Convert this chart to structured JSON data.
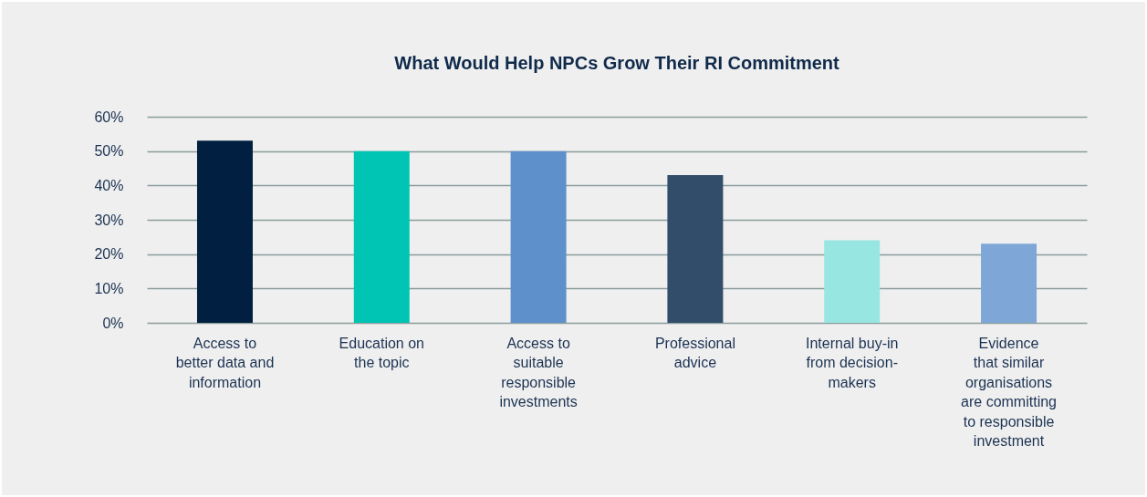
{
  "chart_data": {
    "type": "bar",
    "title": "What Would Help NPCs Grow Their RI Commitment",
    "categories": [
      "Access to\nbetter data and\ninformation",
      "Education on\nthe topic",
      "Access to\nsuitable\nresponsible\ninvestments",
      "Professional\nadvice",
      "Internal buy-in\nfrom decision-\nmakers",
      "Evidence\nthat similar\norganisations\nare committing\nto responsible\ninvestment"
    ],
    "values": [
      0.53,
      0.5,
      0.5,
      0.43,
      0.24,
      0.23
    ],
    "colors": [
      "#011f41",
      "#00c5b5",
      "#5e91cb",
      "#324d69",
      "#98e6e1",
      "#7ea7d8"
    ],
    "ylim": [
      0,
      0.6
    ],
    "yticks": [
      {
        "value": 0,
        "label": "0%"
      },
      {
        "value": 0.1,
        "label": "10%"
      },
      {
        "value": 0.2,
        "label": "20%"
      },
      {
        "value": 0.3,
        "label": "30%"
      },
      {
        "value": 0.4,
        "label": "40%"
      },
      {
        "value": 0.5,
        "label": "50%"
      },
      {
        "value": 0.6,
        "label": "60%"
      }
    ],
    "grid": "y"
  }
}
